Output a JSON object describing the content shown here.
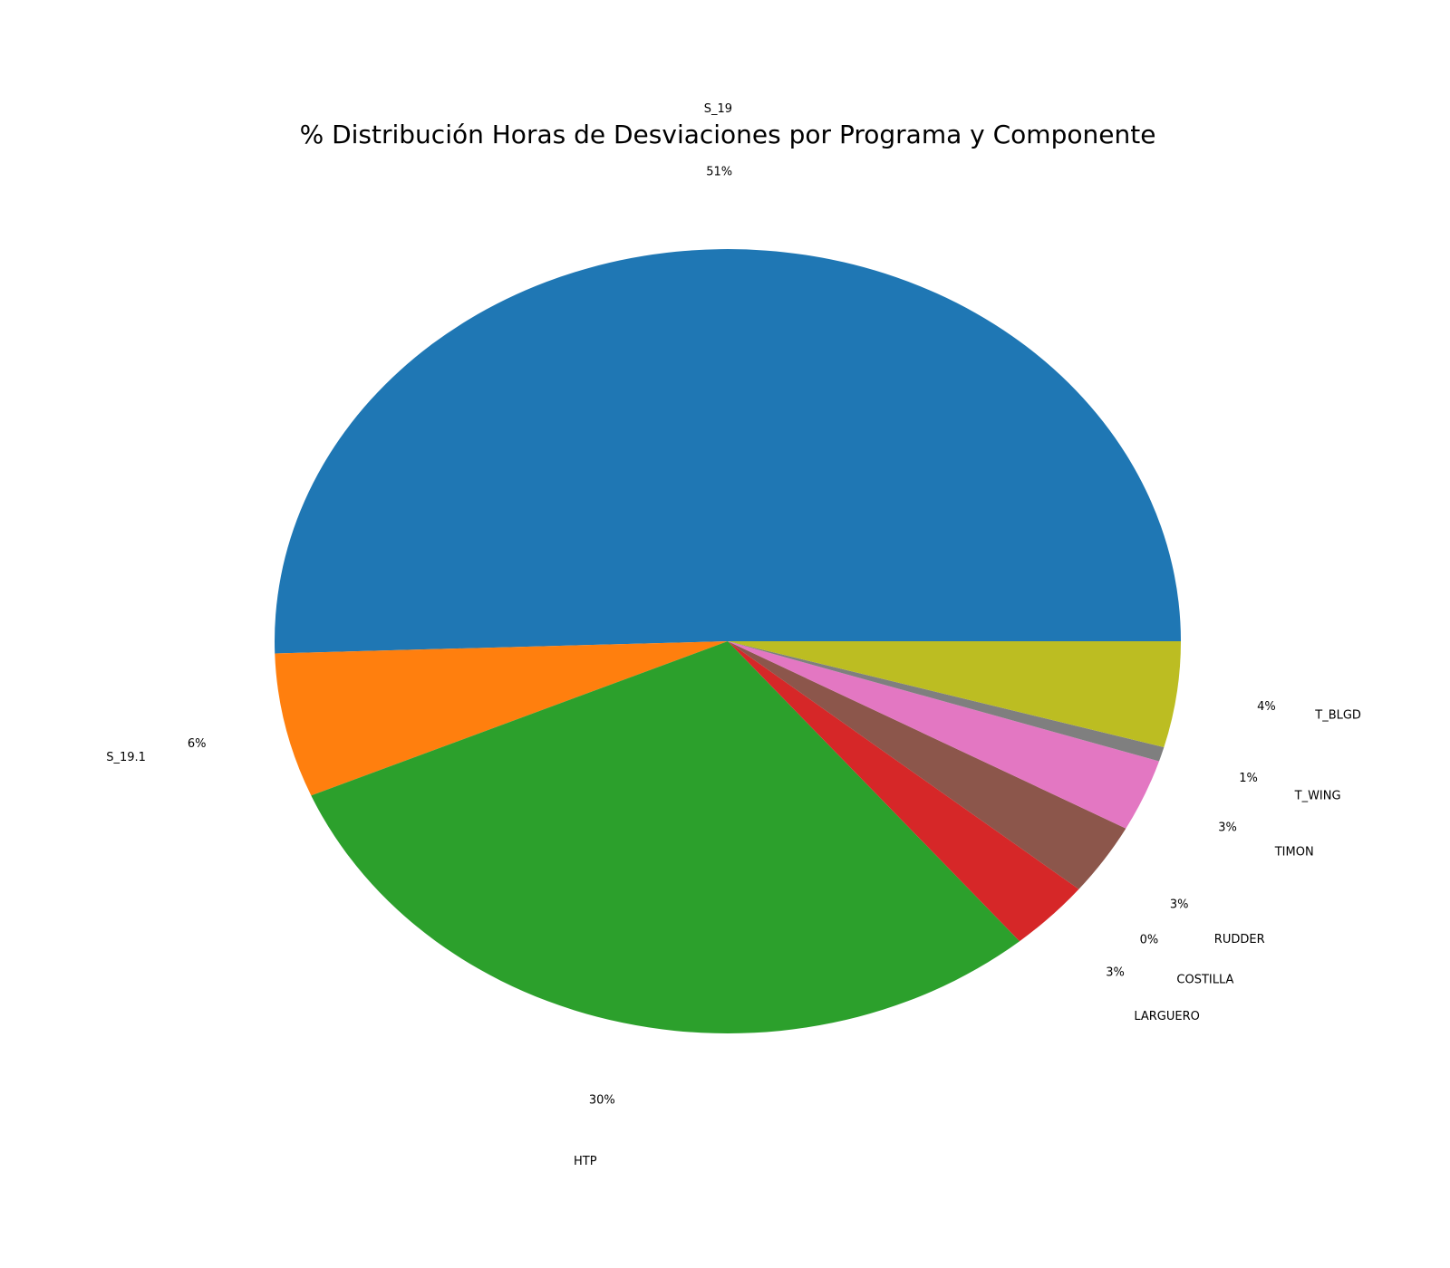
{
  "chart_data": {
    "type": "pie",
    "title": "% Distribución Horas de Desviaciones por Programa y Componente",
    "start_angle_deg": 0,
    "direction": "counterclockwise",
    "labels": [
      "S_19",
      "S_19.1",
      "HTP",
      "LARGUERO",
      "COSTILLA",
      "RUDDER",
      "TIMON",
      "T_WING",
      "T_BLGD"
    ],
    "values": [
      51.0,
      6.0,
      30.0,
      3.0,
      0.0,
      3.0,
      3.0,
      0.6,
      4.4
    ],
    "pct_labels": [
      "51%",
      "6%",
      "30%",
      "3%",
      "0%",
      "3%",
      "3%",
      "1%",
      "4%"
    ],
    "colors": [
      "#1f77b4",
      "#ff7f0e",
      "#2ca02c",
      "#d62728",
      "#9467bd",
      "#8c564b",
      "#e377c2",
      "#7f7f7f",
      "#bcbd22"
    ]
  }
}
